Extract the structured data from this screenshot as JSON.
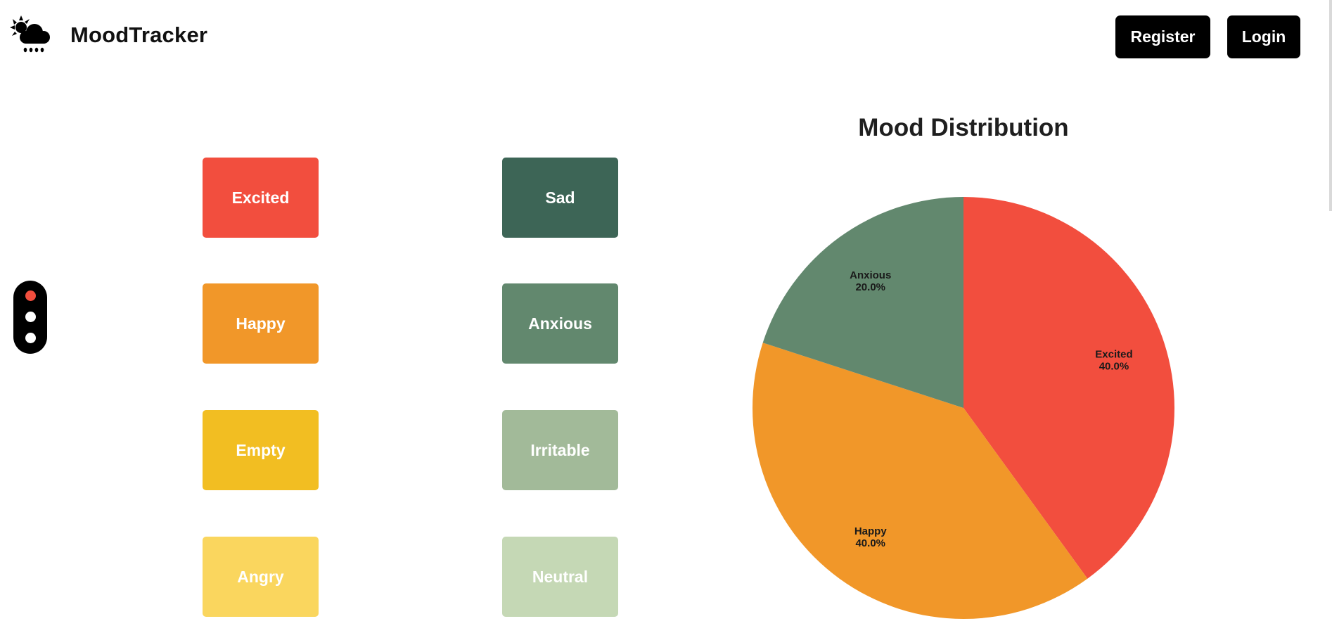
{
  "app": {
    "title": "MoodTracker",
    "logo_icon": "sun-cloud-rain-icon"
  },
  "header": {
    "register_label": "Register",
    "login_label": "Login"
  },
  "theme_toggle": {
    "options": [
      "theme-1",
      "theme-2",
      "theme-3"
    ],
    "active_index": 0,
    "active_color": "#f24e3e",
    "inactive_color": "#ffffff"
  },
  "moods": [
    {
      "label": "Excited",
      "color": "#f24e3e"
    },
    {
      "label": "Sad",
      "color": "#3d6556"
    },
    {
      "label": "Happy",
      "color": "#f19729"
    },
    {
      "label": "Anxious",
      "color": "#62886e"
    },
    {
      "label": "Empty",
      "color": "#f2be22"
    },
    {
      "label": "Irritable",
      "color": "#a2ba99"
    },
    {
      "label": "Angry",
      "color": "#fad65e"
    },
    {
      "label": "Neutral",
      "color": "#c5d8b5"
    }
  ],
  "chart_data": {
    "type": "pie",
    "title": "Mood Distribution",
    "slices": [
      {
        "label": "Excited",
        "value": 40.0,
        "display": "40.0%",
        "color": "#f24e3e"
      },
      {
        "label": "Happy",
        "value": 40.0,
        "display": "40.0%",
        "color": "#f19729"
      },
      {
        "label": "Anxious",
        "value": 20.0,
        "display": "20.0%",
        "color": "#62886e"
      }
    ],
    "start_angle_deg": 90,
    "direction": "clockwise"
  }
}
